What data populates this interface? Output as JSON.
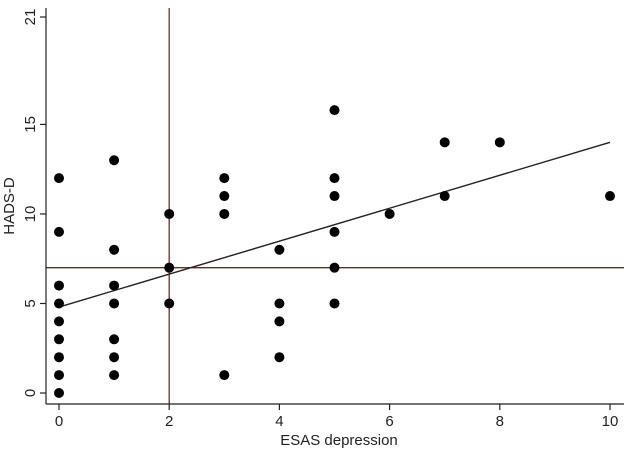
{
  "chart_data": {
    "type": "scatter",
    "title": "",
    "xlabel": "ESAS depression",
    "ylabel": "HADS-D",
    "xlim": [
      0,
      10
    ],
    "ylim": [
      0,
      21
    ],
    "xticks": [
      0,
      2,
      4,
      6,
      8,
      10
    ],
    "yticks": [
      0,
      5,
      10,
      15,
      21
    ],
    "grid": false,
    "legend": "none",
    "point_color": "#000000",
    "fit_line_color": "#222222",
    "reference_line_color": "#6e2a2a",
    "reference_lines": {
      "x": 2,
      "y": 7
    },
    "fit_line": {
      "x": [
        0,
        10
      ],
      "y": [
        4.8,
        14.0
      ]
    },
    "series": [
      {
        "points": [
          [
            0,
            12
          ],
          [
            0,
            9
          ],
          [
            0,
            6
          ],
          [
            0,
            5
          ],
          [
            0,
            4
          ],
          [
            0,
            3
          ],
          [
            0,
            2
          ],
          [
            0,
            1
          ],
          [
            0,
            0
          ],
          [
            1,
            13
          ],
          [
            1,
            8
          ],
          [
            1,
            6
          ],
          [
            1,
            5
          ],
          [
            1,
            3
          ],
          [
            1,
            2
          ],
          [
            1,
            1
          ],
          [
            2,
            10
          ],
          [
            2,
            7
          ],
          [
            2,
            5
          ],
          [
            3,
            12
          ],
          [
            3,
            11
          ],
          [
            3,
            10
          ],
          [
            3,
            1
          ],
          [
            4,
            8
          ],
          [
            4,
            5
          ],
          [
            4,
            4
          ],
          [
            4,
            2
          ],
          [
            5,
            15.8
          ],
          [
            5,
            12
          ],
          [
            5,
            11
          ],
          [
            5,
            9
          ],
          [
            5,
            7
          ],
          [
            5,
            5
          ],
          [
            6,
            10
          ],
          [
            7,
            14
          ],
          [
            7,
            11
          ],
          [
            8,
            14
          ],
          [
            10,
            11
          ]
        ]
      }
    ]
  }
}
